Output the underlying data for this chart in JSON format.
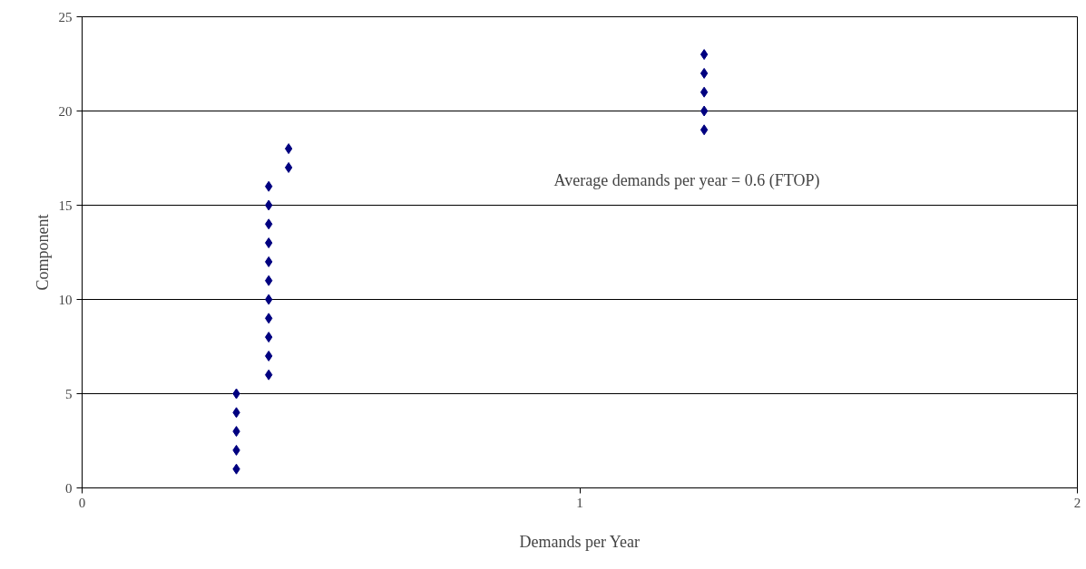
{
  "chart_data": {
    "type": "scatter",
    "xlabel": "Demands per Year",
    "ylabel": "Component",
    "x": [
      0.31,
      0.31,
      0.31,
      0.31,
      0.31,
      0.375,
      0.375,
      0.375,
      0.375,
      0.375,
      0.375,
      0.375,
      0.375,
      0.375,
      0.375,
      0.375,
      0.415,
      0.415,
      1.25,
      1.25,
      1.25,
      1.25,
      1.25
    ],
    "series": [
      {
        "color": "#000080",
        "values": [
          1,
          2,
          3,
          4,
          5,
          6,
          7,
          8,
          9,
          10,
          11,
          12,
          13,
          14,
          15,
          16,
          17,
          18,
          19,
          20,
          21,
          22,
          23
        ]
      }
    ],
    "xlim": [
      0,
      2
    ],
    "xticks": [
      0,
      1,
      2
    ],
    "ylim": [
      0,
      25
    ],
    "yticks": [
      0,
      5,
      10,
      15,
      20,
      25
    ],
    "grid": "y",
    "marker": "diamond",
    "annotations": [
      "Average demands per year = 0.6 (FTOP)"
    ]
  }
}
